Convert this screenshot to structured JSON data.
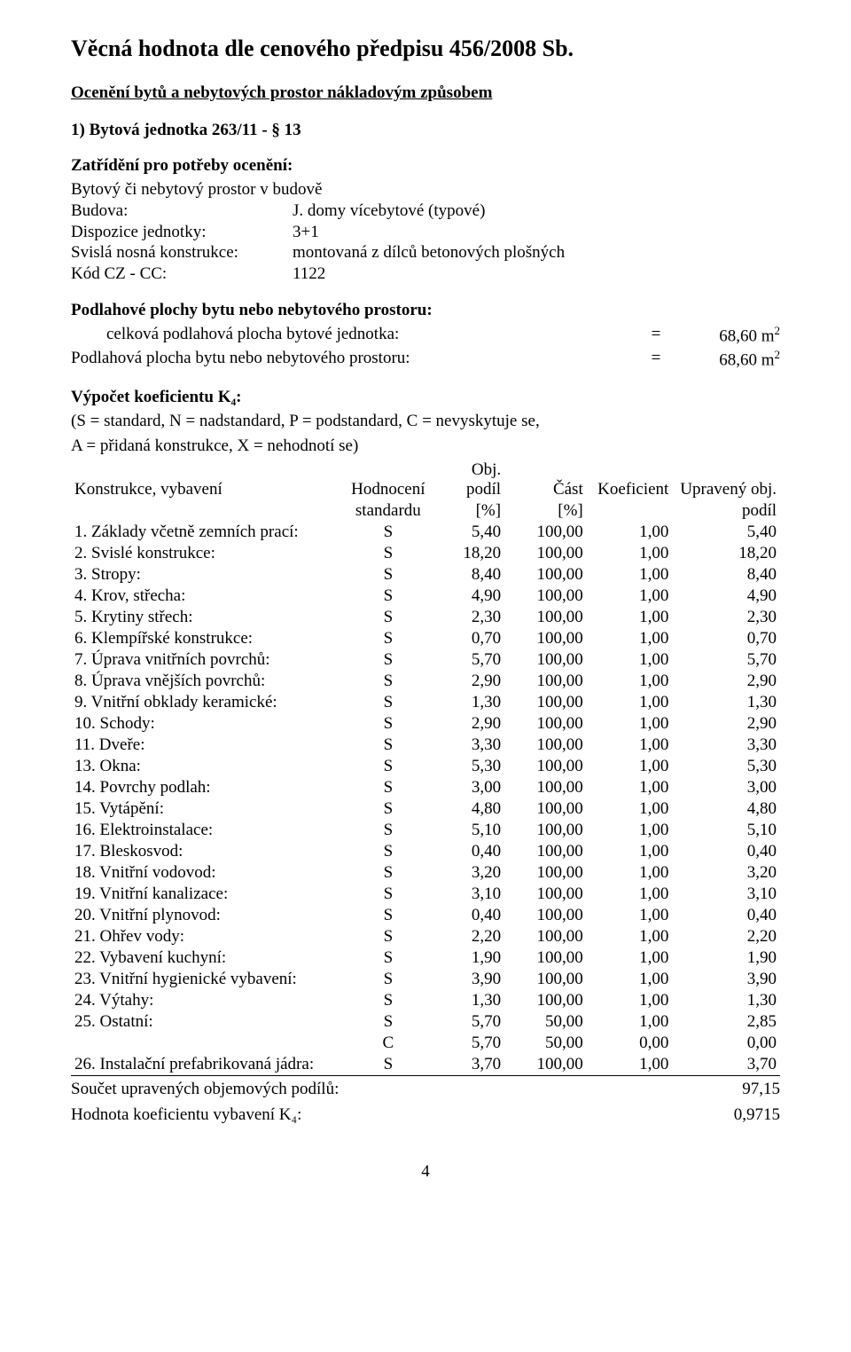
{
  "title": "Věcná hodnota dle cenového předpisu 456/2008 Sb.",
  "subtitle": "Ocenění bytů a nebytových prostor nákladovým způsobem",
  "unit_heading": "1) Bytová jednotka 263/11 - § 13",
  "classification_heading": "Zatřídění pro potřeby ocenění:",
  "kv_lines": [
    {
      "k": "Bytový či nebytový prostor v budově",
      "v": ""
    },
    {
      "k": "Budova:",
      "v": "J. domy vícebytové (typové)"
    },
    {
      "k": "Dispozice jednotky:",
      "v": "3+1"
    },
    {
      "k": "Svislá nosná konstrukce:",
      "v": "montovaná z dílců betonových plošných"
    },
    {
      "k": "Kód CZ - CC:",
      "v": "1122"
    }
  ],
  "floor_heading": "Podlahové plochy bytu nebo nebytového prostoru:",
  "floor_line1": {
    "lbl": "celková podlahová plocha bytové jednotka:",
    "eq": "=",
    "val": "68,60 m",
    "sup": "2",
    "indent": true
  },
  "floor_line2": {
    "lbl": "Podlahová plocha bytu nebo nebytového prostoru:",
    "eq": "=",
    "val": "68,60 m",
    "sup": "2",
    "indent": false
  },
  "k4_heading": "Výpočet koeficientu K₄:",
  "k4_legend1": "(S = standard, N = nadstandard, P = podstandard, C = nevyskytuje se,",
  "k4_legend2": "A = přidaná konstrukce, X = nehodnotí se)",
  "table_header": {
    "c1": "Konstrukce, vybavení",
    "c2a": "Hodnocení",
    "c2b": "standardu",
    "c3a": "Obj. podíl",
    "c3b": "[%]",
    "c4a": "Část",
    "c4b": "[%]",
    "c5": "Koeficient",
    "c6a": "Upravený obj.",
    "c6b": "podíl"
  },
  "rows": [
    {
      "c1": " 1. Základy včetně zemních prací:",
      "c2": "S",
      "c3": "5,40",
      "c4": "100,00",
      "c5": "1,00",
      "c6": "5,40"
    },
    {
      "c1": " 2. Svislé konstrukce:",
      "c2": "S",
      "c3": "18,20",
      "c4": "100,00",
      "c5": "1,00",
      "c6": "18,20"
    },
    {
      "c1": " 3. Stropy:",
      "c2": "S",
      "c3": "8,40",
      "c4": "100,00",
      "c5": "1,00",
      "c6": "8,40"
    },
    {
      "c1": " 4. Krov, střecha:",
      "c2": "S",
      "c3": "4,90",
      "c4": "100,00",
      "c5": "1,00",
      "c6": "4,90"
    },
    {
      "c1": " 5. Krytiny střech:",
      "c2": "S",
      "c3": "2,30",
      "c4": "100,00",
      "c5": "1,00",
      "c6": "2,30"
    },
    {
      "c1": " 6. Klempířské konstrukce:",
      "c2": "S",
      "c3": "0,70",
      "c4": "100,00",
      "c5": "1,00",
      "c6": "0,70"
    },
    {
      "c1": " 7. Úprava vnitřních povrchů:",
      "c2": "S",
      "c3": "5,70",
      "c4": "100,00",
      "c5": "1,00",
      "c6": "5,70"
    },
    {
      "c1": " 8. Úprava vnějších povrchů:",
      "c2": "S",
      "c3": "2,90",
      "c4": "100,00",
      "c5": "1,00",
      "c6": "2,90"
    },
    {
      "c1": " 9. Vnitřní obklady keramické:",
      "c2": "S",
      "c3": "1,30",
      "c4": "100,00",
      "c5": "1,00",
      "c6": "1,30"
    },
    {
      "c1": "10. Schody:",
      "c2": "S",
      "c3": "2,90",
      "c4": "100,00",
      "c5": "1,00",
      "c6": "2,90"
    },
    {
      "c1": "11. Dveře:",
      "c2": "S",
      "c3": "3,30",
      "c4": "100,00",
      "c5": "1,00",
      "c6": "3,30"
    },
    {
      "c1": "13. Okna:",
      "c2": "S",
      "c3": "5,30",
      "c4": "100,00",
      "c5": "1,00",
      "c6": "5,30"
    },
    {
      "c1": "14. Povrchy podlah:",
      "c2": "S",
      "c3": "3,00",
      "c4": "100,00",
      "c5": "1,00",
      "c6": "3,00"
    },
    {
      "c1": "15. Vytápění:",
      "c2": "S",
      "c3": "4,80",
      "c4": "100,00",
      "c5": "1,00",
      "c6": "4,80"
    },
    {
      "c1": "16. Elektroinstalace:",
      "c2": "S",
      "c3": "5,10",
      "c4": "100,00",
      "c5": "1,00",
      "c6": "5,10"
    },
    {
      "c1": "17. Bleskosvod:",
      "c2": "S",
      "c3": "0,40",
      "c4": "100,00",
      "c5": "1,00",
      "c6": "0,40"
    },
    {
      "c1": "18. Vnitřní vodovod:",
      "c2": "S",
      "c3": "3,20",
      "c4": "100,00",
      "c5": "1,00",
      "c6": "3,20"
    },
    {
      "c1": "19. Vnitřní kanalizace:",
      "c2": "S",
      "c3": "3,10",
      "c4": "100,00",
      "c5": "1,00",
      "c6": "3,10"
    },
    {
      "c1": "20. Vnitřní plynovod:",
      "c2": "S",
      "c3": "0,40",
      "c4": "100,00",
      "c5": "1,00",
      "c6": "0,40"
    },
    {
      "c1": "21. Ohřev vody:",
      "c2": "S",
      "c3": "2,20",
      "c4": "100,00",
      "c5": "1,00",
      "c6": "2,20"
    },
    {
      "c1": "22. Vybavení kuchyní:",
      "c2": "S",
      "c3": "1,90",
      "c4": "100,00",
      "c5": "1,00",
      "c6": "1,90"
    },
    {
      "c1": "23. Vnitřní hygienické vybavení:",
      "c2": "S",
      "c3": "3,90",
      "c4": "100,00",
      "c5": "1,00",
      "c6": "3,90"
    },
    {
      "c1": "24. Výtahy:",
      "c2": "S",
      "c3": "1,30",
      "c4": "100,00",
      "c5": "1,00",
      "c6": "1,30"
    },
    {
      "c1": "25. Ostatní:",
      "c2": "S",
      "c3": "5,70",
      "c4": "50,00",
      "c5": "1,00",
      "c6": "2,85"
    },
    {
      "c1": "",
      "c2": "C",
      "c3": "5,70",
      "c4": "50,00",
      "c5": "0,00",
      "c6": "0,00"
    },
    {
      "c1": "26. Instalační prefabrikovaná jádra:",
      "c2": "S",
      "c3": "3,70",
      "c4": "100,00",
      "c5": "1,00",
      "c6": "3,70",
      "underline": true
    }
  ],
  "sum_label": "Součet upravených objemových podílů:",
  "sum_value": "97,15",
  "k4_label": "Hodnota koeficientu vybavení K₄:",
  "k4_value": "0,9715",
  "page_number": "4"
}
